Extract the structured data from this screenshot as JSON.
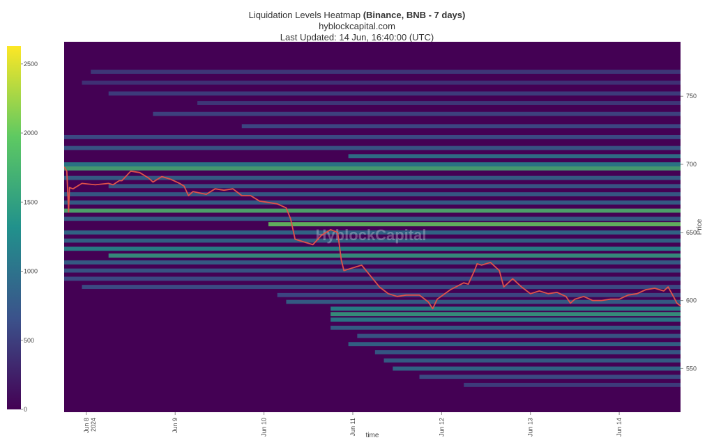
{
  "header": {
    "title_prefix": "Liquidation Levels Heatmap ",
    "title_bold": "(Binance, BNB - 7 days)",
    "subtitle": "hyblockcapital.com",
    "updated": "Last Updated: 14 Jun, 16:40:00 (UTC)"
  },
  "watermark": "HyblockCapital",
  "chart_data": {
    "type": "heatmap",
    "title": "Liquidation Levels Heatmap (Binance, BNB - 7 days)",
    "xlabel": "time",
    "ylabel": "Price",
    "ylim": [
      518,
      790
    ],
    "x_ticks": [
      {
        "label": "Jun 8",
        "sub": "2024",
        "t": 0.25
      },
      {
        "label": "Jun 9",
        "sub": "",
        "t": 1.25
      },
      {
        "label": "Jun 10",
        "sub": "",
        "t": 2.25
      },
      {
        "label": "Jun 11",
        "sub": "",
        "t": 3.25
      },
      {
        "label": "Jun 12",
        "sub": "",
        "t": 4.25
      },
      {
        "label": "Jun 13",
        "sub": "",
        "t": 5.25
      },
      {
        "label": "Jun 14",
        "sub": "",
        "t": 6.25
      }
    ],
    "t_range": [
      0,
      6.94
    ],
    "y_ticks": [
      550,
      600,
      650,
      700,
      750
    ],
    "colorbar": {
      "min": 0,
      "max": 2630,
      "ticks": [
        0,
        500,
        1000,
        1500,
        2000,
        2500
      ],
      "colors": [
        "#440154",
        "#3b528b",
        "#21918c",
        "#5ec962",
        "#fde725"
      ]
    },
    "price_series": {
      "name": "BNB price",
      "color": "#e0524a",
      "points": [
        [
          0.0,
          698
        ],
        [
          0.03,
          695
        ],
        [
          0.05,
          665
        ],
        [
          0.06,
          683
        ],
        [
          0.1,
          682
        ],
        [
          0.2,
          686
        ],
        [
          0.35,
          685
        ],
        [
          0.5,
          686
        ],
        [
          0.55,
          685
        ],
        [
          0.62,
          688
        ],
        [
          0.65,
          688
        ],
        [
          0.75,
          695
        ],
        [
          0.85,
          694
        ],
        [
          0.95,
          690
        ],
        [
          1.0,
          687
        ],
        [
          1.1,
          691
        ],
        [
          1.2,
          689
        ],
        [
          1.3,
          686
        ],
        [
          1.35,
          684
        ],
        [
          1.4,
          677
        ],
        [
          1.45,
          680
        ],
        [
          1.6,
          678
        ],
        [
          1.7,
          682
        ],
        [
          1.8,
          681
        ],
        [
          1.9,
          682
        ],
        [
          2.0,
          677
        ],
        [
          2.1,
          677
        ],
        [
          2.2,
          673
        ],
        [
          2.3,
          672
        ],
        [
          2.4,
          671
        ],
        [
          2.5,
          668
        ],
        [
          2.55,
          660
        ],
        [
          2.6,
          645
        ],
        [
          2.7,
          643
        ],
        [
          2.8,
          641
        ],
        [
          2.9,
          648
        ],
        [
          3.0,
          652
        ],
        [
          3.08,
          650
        ],
        [
          3.12,
          630
        ],
        [
          3.15,
          622
        ],
        [
          3.25,
          624
        ],
        [
          3.35,
          626
        ],
        [
          3.45,
          618
        ],
        [
          3.55,
          610
        ],
        [
          3.65,
          605
        ],
        [
          3.75,
          603
        ],
        [
          3.85,
          604
        ],
        [
          4.0,
          604
        ],
        [
          4.1,
          599
        ],
        [
          4.15,
          594
        ],
        [
          4.2,
          601
        ],
        [
          4.35,
          608
        ],
        [
          4.5,
          613
        ],
        [
          4.55,
          612
        ],
        [
          4.62,
          622
        ],
        [
          4.65,
          627
        ],
        [
          4.7,
          626
        ],
        [
          4.8,
          628
        ],
        [
          4.9,
          622
        ],
        [
          4.95,
          610
        ],
        [
          5.05,
          616
        ],
        [
          5.15,
          610
        ],
        [
          5.25,
          605
        ],
        [
          5.35,
          607
        ],
        [
          5.45,
          605
        ],
        [
          5.55,
          606
        ],
        [
          5.65,
          603
        ],
        [
          5.7,
          598
        ],
        [
          5.75,
          601
        ],
        [
          5.85,
          603
        ],
        [
          5.95,
          600
        ],
        [
          6.05,
          600
        ],
        [
          6.15,
          601
        ],
        [
          6.25,
          601
        ],
        [
          6.35,
          604
        ],
        [
          6.45,
          605
        ],
        [
          6.55,
          608
        ],
        [
          6.65,
          609
        ],
        [
          6.75,
          607
        ],
        [
          6.8,
          610
        ],
        [
          6.86,
          603
        ],
        [
          6.9,
          598
        ],
        [
          6.94,
          596
        ]
      ]
    },
    "bands": [
      {
        "price": 768,
        "from": 0.3,
        "to": 6.94,
        "value": 500
      },
      {
        "price": 760,
        "from": 0.2,
        "to": 6.94,
        "value": 450
      },
      {
        "price": 752,
        "from": 0.5,
        "to": 6.94,
        "value": 550
      },
      {
        "price": 745,
        "from": 1.5,
        "to": 6.94,
        "value": 500
      },
      {
        "price": 737,
        "from": 1.0,
        "to": 6.94,
        "value": 600
      },
      {
        "price": 728,
        "from": 2.0,
        "to": 6.94,
        "value": 650
      },
      {
        "price": 720,
        "from": 0.0,
        "to": 6.94,
        "value": 700
      },
      {
        "price": 712,
        "from": 0.0,
        "to": 6.94,
        "value": 800
      },
      {
        "price": 706,
        "from": 3.2,
        "to": 6.94,
        "value": 1100
      },
      {
        "price": 700,
        "from": 0.0,
        "to": 6.94,
        "value": 1200
      },
      {
        "price": 697,
        "from": 0.0,
        "to": 6.94,
        "value": 1700
      },
      {
        "price": 690,
        "from": 0.0,
        "to": 6.94,
        "value": 900
      },
      {
        "price": 684,
        "from": 0.5,
        "to": 6.94,
        "value": 800
      },
      {
        "price": 678,
        "from": 0.0,
        "to": 6.94,
        "value": 850
      },
      {
        "price": 672,
        "from": 0.0,
        "to": 6.94,
        "value": 900
      },
      {
        "price": 666,
        "from": 0.0,
        "to": 6.94,
        "value": 1800
      },
      {
        "price": 660,
        "from": 0.0,
        "to": 6.94,
        "value": 900
      },
      {
        "price": 656,
        "from": 2.3,
        "to": 6.94,
        "value": 2000
      },
      {
        "price": 650,
        "from": 0.0,
        "to": 6.94,
        "value": 1000
      },
      {
        "price": 644,
        "from": 0.0,
        "to": 6.94,
        "value": 950
      },
      {
        "price": 638,
        "from": 0.0,
        "to": 6.94,
        "value": 1300
      },
      {
        "price": 633,
        "from": 0.5,
        "to": 6.94,
        "value": 1500
      },
      {
        "price": 628,
        "from": 0.0,
        "to": 6.94,
        "value": 900
      },
      {
        "price": 622,
        "from": 0.0,
        "to": 6.94,
        "value": 800
      },
      {
        "price": 616,
        "from": 0.0,
        "to": 6.94,
        "value": 700
      },
      {
        "price": 610,
        "from": 0.2,
        "to": 6.94,
        "value": 700
      },
      {
        "price": 604,
        "from": 2.4,
        "to": 6.94,
        "value": 650
      },
      {
        "price": 599,
        "from": 2.5,
        "to": 6.94,
        "value": 900
      },
      {
        "price": 594,
        "from": 3.0,
        "to": 6.94,
        "value": 1300
      },
      {
        "price": 590,
        "from": 3.0,
        "to": 6.94,
        "value": 1500
      },
      {
        "price": 586,
        "from": 3.0,
        "to": 6.94,
        "value": 1200
      },
      {
        "price": 580,
        "from": 3.0,
        "to": 6.94,
        "value": 900
      },
      {
        "price": 574,
        "from": 3.3,
        "to": 6.94,
        "value": 800
      },
      {
        "price": 568,
        "from": 3.2,
        "to": 6.94,
        "value": 950
      },
      {
        "price": 562,
        "from": 3.5,
        "to": 6.94,
        "value": 850
      },
      {
        "price": 556,
        "from": 3.6,
        "to": 6.94,
        "value": 900
      },
      {
        "price": 550,
        "from": 3.7,
        "to": 6.94,
        "value": 1000
      },
      {
        "price": 544,
        "from": 4.0,
        "to": 6.94,
        "value": 700
      },
      {
        "price": 538,
        "from": 4.5,
        "to": 6.94,
        "value": 550
      }
    ]
  }
}
